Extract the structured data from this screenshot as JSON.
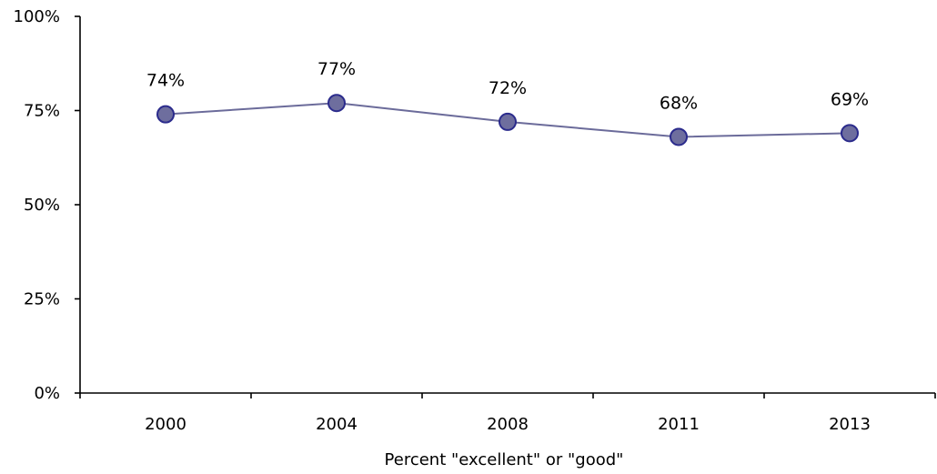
{
  "chart_data": {
    "type": "line",
    "title": "",
    "xlabel": "Percent \"excellent\" or \"good\"",
    "ylabel": "",
    "categories": [
      "2000",
      "2004",
      "2008",
      "2011",
      "2013"
    ],
    "series": [
      {
        "values": [
          74,
          77,
          72,
          68,
          69
        ],
        "labels": [
          "74%",
          "77%",
          "72%",
          "68%",
          "69%"
        ],
        "line_color": "#6b6b9a",
        "marker_fill": "#6e6e9e",
        "marker_stroke": "#2b2b8c"
      }
    ],
    "ylim": [
      0,
      100
    ],
    "yticks": [
      0,
      25,
      50,
      75,
      100
    ],
    "ytick_labels": [
      "0%",
      "25%",
      "50%",
      "75%",
      "100%"
    ],
    "grid": false,
    "legend": "none"
  }
}
